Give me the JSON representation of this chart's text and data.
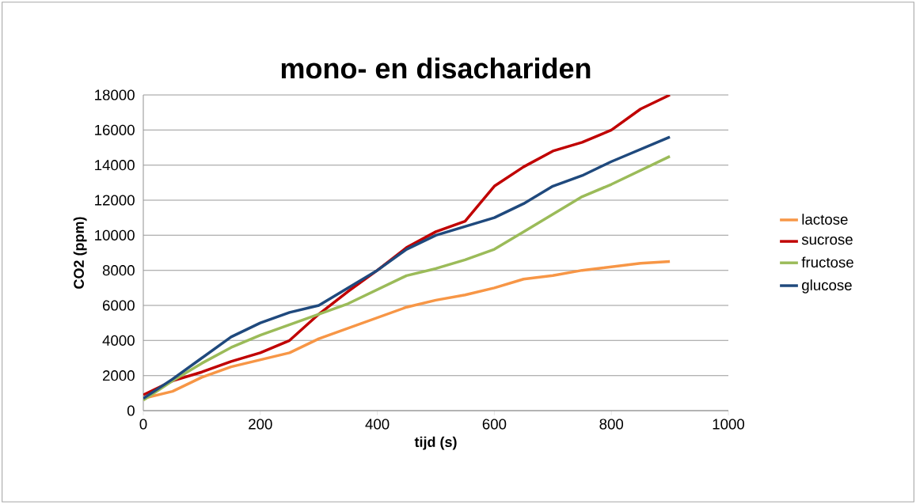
{
  "chart_data": {
    "type": "line",
    "title": "mono- en disachariden",
    "xlabel": "tijd (s)",
    "ylabel": "CO2 (ppm)",
    "x": [
      0,
      50,
      100,
      150,
      200,
      250,
      300,
      350,
      400,
      450,
      500,
      550,
      600,
      650,
      700,
      750,
      800,
      850,
      900
    ],
    "series": [
      {
        "name": "lactose",
        "color": "#f79646",
        "values": [
          700,
          1100,
          1900,
          2500,
          2900,
          3300,
          4100,
          4700,
          5300,
          5900,
          6300,
          6600,
          7000,
          7500,
          7700,
          8000,
          8200,
          8400,
          8500
        ]
      },
      {
        "name": "sucrose",
        "color": "#c00000",
        "values": [
          900,
          1700,
          2200,
          2800,
          3300,
          4000,
          5500,
          6800,
          8000,
          9300,
          10200,
          10800,
          12800,
          13900,
          14800,
          15300,
          16000,
          17200,
          18000
        ]
      },
      {
        "name": "fructose",
        "color": "#9bbb59",
        "values": [
          600,
          1700,
          2700,
          3600,
          4300,
          4900,
          5500,
          6100,
          6900,
          7700,
          8100,
          8600,
          9200,
          10200,
          11200,
          12200,
          12900,
          13700,
          14500
        ]
      },
      {
        "name": "glucose",
        "color": "#1f497d",
        "values": [
          700,
          1800,
          3000,
          4200,
          5000,
          5600,
          6000,
          7000,
          8000,
          9200,
          10000,
          10500,
          11000,
          11800,
          12800,
          13400,
          14200,
          14900,
          15600
        ]
      }
    ],
    "xlim": [
      0,
      1000
    ],
    "xticks": [
      0,
      200,
      400,
      600,
      800,
      1000
    ],
    "ylim": [
      0,
      18000
    ],
    "yticks": [
      0,
      2000,
      4000,
      6000,
      8000,
      10000,
      12000,
      14000,
      16000,
      18000
    ],
    "grid": "y",
    "legend": "right",
    "marker": "none",
    "line_style": "solid"
  }
}
